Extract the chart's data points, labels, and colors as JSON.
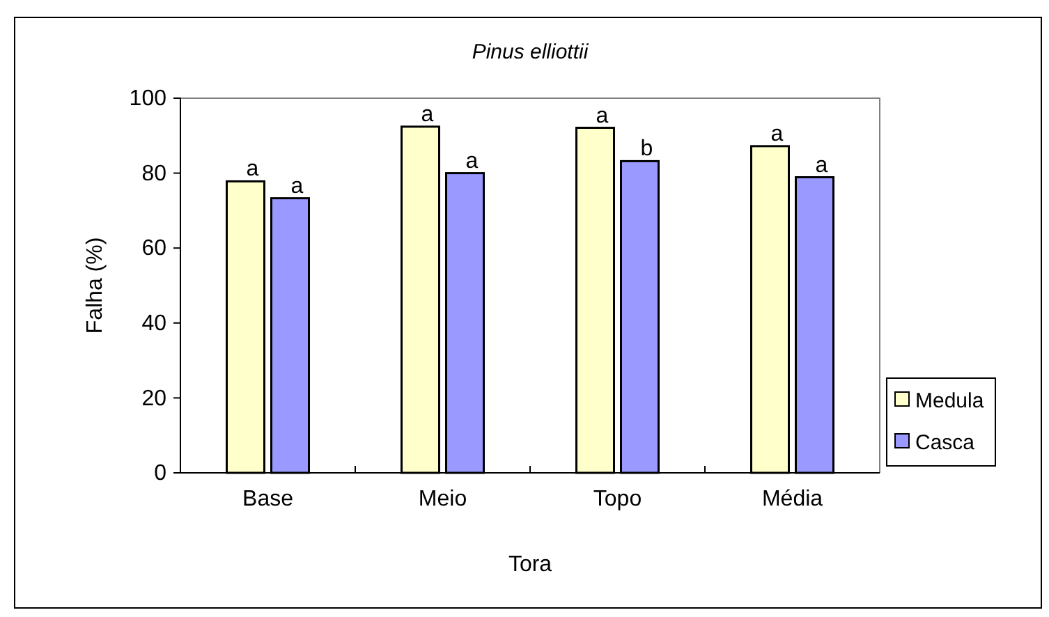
{
  "chart_data": {
    "type": "bar",
    "title": "Pinus elliottii",
    "xlabel": "Tora",
    "ylabel": "Falha (%)",
    "categories": [
      "Base",
      "Meio",
      "Topo",
      "Média"
    ],
    "series": [
      {
        "name": "Medula",
        "color": "#ffffcc",
        "values": [
          77.8,
          92.4,
          92.1,
          87.2
        ],
        "value_labels": [
          "a",
          "a",
          "a",
          "a"
        ]
      },
      {
        "name": "Casca",
        "color": "#9999ff",
        "values": [
          73.3,
          80.0,
          83.2,
          78.9
        ],
        "value_labels": [
          "a",
          "a",
          "b",
          "a"
        ]
      }
    ],
    "ylim": [
      0,
      100
    ],
    "yticks": [
      0,
      20,
      40,
      60,
      80,
      100
    ],
    "grid": false,
    "legend": "right"
  }
}
